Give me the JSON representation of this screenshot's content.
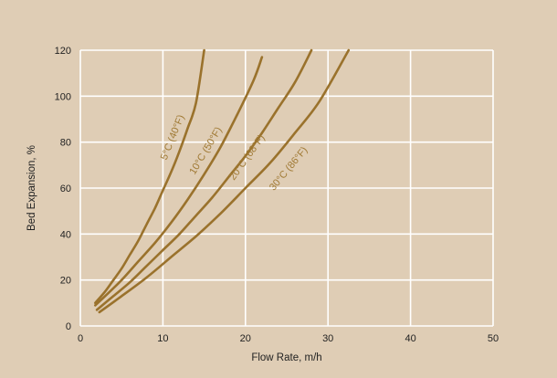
{
  "chart_data": {
    "type": "line",
    "title": "",
    "xlabel": "Flow Rate, m/h",
    "ylabel": "Bed Expansion, %",
    "xlim": [
      0,
      50
    ],
    "ylim": [
      0,
      120
    ],
    "xticks": [
      0,
      10,
      20,
      30,
      40,
      50
    ],
    "yticks": [
      0,
      20,
      40,
      60,
      80,
      100,
      120
    ],
    "xtick_labels": [
      "0",
      "10",
      "20",
      "30",
      "40",
      "50"
    ],
    "ytick_labels": [
      "0",
      "20",
      "40",
      "60",
      "80",
      "100",
      "120"
    ],
    "grid": true,
    "legend": "none",
    "colors": {
      "background": "#dfcdb5",
      "plot_area": "#dfcdb5",
      "grid": "#ffffff",
      "line": "#9a722c",
      "label": "#a07a35"
    },
    "series": [
      {
        "name": "5°C (40°F)",
        "x": [
          1.8,
          3,
          4,
          5,
          6,
          7,
          8,
          9,
          10,
          11,
          12,
          13,
          14,
          15
        ],
        "y": [
          10,
          15,
          20,
          25,
          31,
          37,
          44,
          51,
          59,
          67,
          76,
          86,
          97,
          120
        ]
      },
      {
        "name": "10°C (50°F)",
        "x": [
          1.8,
          3,
          5,
          7,
          9,
          11,
          13,
          15,
          17,
          19,
          21,
          22
        ],
        "y": [
          9,
          13,
          20,
          28,
          36,
          45,
          55,
          66,
          78,
          92,
          107,
          117
        ]
      },
      {
        "name": "20°C (68°F)",
        "x": [
          2,
          4,
          6,
          8,
          10,
          12,
          14,
          16,
          18,
          20,
          22,
          24,
          26,
          28
        ],
        "y": [
          7,
          13,
          19,
          26,
          33,
          40,
          48,
          56,
          65,
          74,
          84,
          95,
          106,
          120
        ]
      },
      {
        "name": "30°C (86°F)",
        "x": [
          2.3,
          5,
          8,
          11,
          14,
          17,
          20,
          23,
          26,
          29,
          32.5
        ],
        "y": [
          6,
          13,
          21,
          30,
          39,
          49,
          60,
          71,
          84,
          98,
          120
        ]
      }
    ]
  }
}
